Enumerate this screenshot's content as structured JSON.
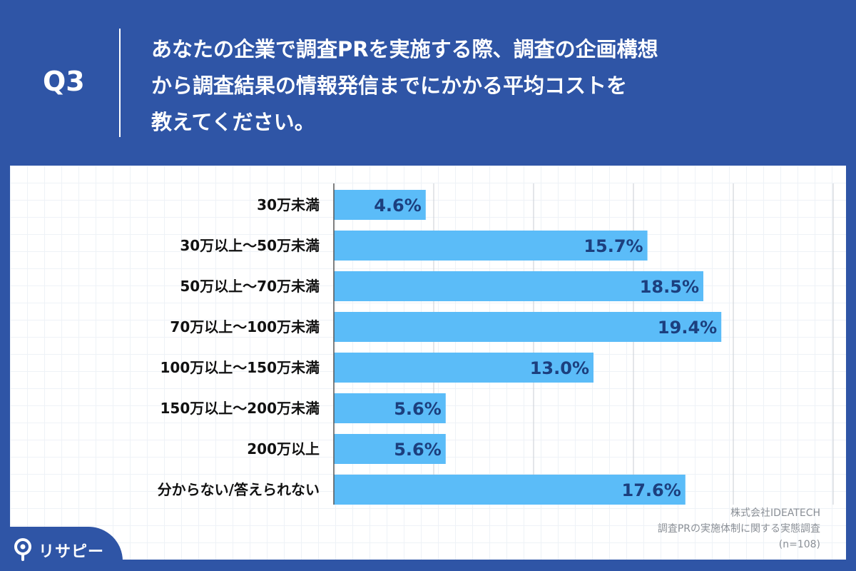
{
  "header": {
    "q_label": "Q3",
    "question": "あなたの企業で調査PRを実施する際、調査の企画構想\nから調査結果の情報発信までにかかる平均コストを\n教えてください。"
  },
  "chart_data": {
    "type": "bar",
    "orientation": "horizontal",
    "categories": [
      "30万未満",
      "30万以上～50万未満",
      "50万以上～70万未満",
      "70万以上～100万未満",
      "100万以上～150万未満",
      "150万以上～200万未満",
      "200万以上",
      "分からない/答えられない"
    ],
    "values": [
      4.6,
      15.7,
      18.5,
      19.4,
      13.0,
      5.6,
      5.6,
      17.6
    ],
    "value_labels": [
      "4.6%",
      "15.7%",
      "18.5%",
      "19.4%",
      "13.0%",
      "5.6%",
      "5.6%",
      "17.6%"
    ],
    "xlim": [
      0,
      25
    ],
    "grid": true,
    "bar_color": "#5bbcf8",
    "title": "",
    "xlabel": "",
    "ylabel": ""
  },
  "source": {
    "company": "株式会社IDEATECH",
    "survey": "調査PRの実施体制に関する実態調査",
    "sample": "(n=108)"
  },
  "logo": {
    "text": "リサピー",
    "icon": "pin-logo-icon"
  },
  "colors": {
    "background": "#2f55a6",
    "bar": "#5bbcf8",
    "value_text": "#1c3f7e"
  }
}
